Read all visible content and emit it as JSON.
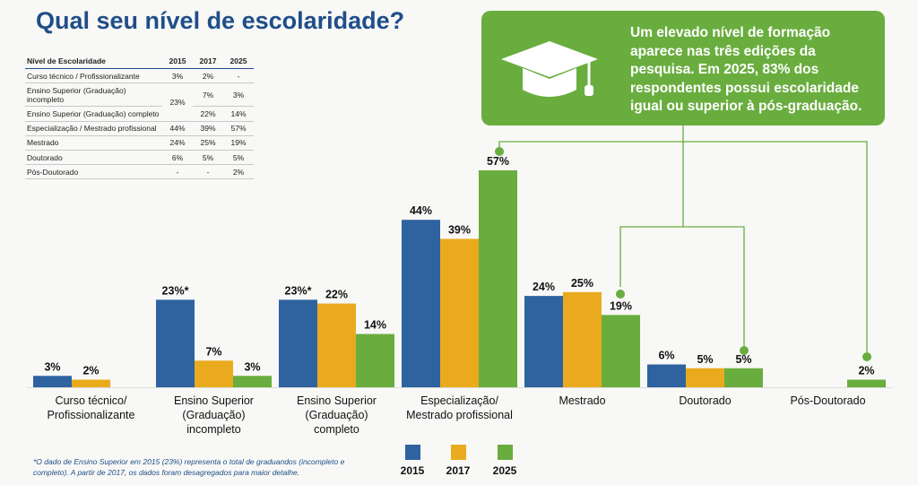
{
  "title": "Qual seu nível de escolaridade?",
  "table": {
    "headers": [
      "Nível de Escolaridade",
      "2015",
      "2017",
      "2025"
    ],
    "rows": [
      [
        "Curso técnico / Profissionalizante",
        "3%",
        "2%",
        "-"
      ],
      [
        "Ensino Superior (Graduação) incompleto",
        "23%",
        "7%",
        "3%"
      ],
      [
        "Ensino Superior (Graduação) completo",
        "",
        "22%",
        "14%"
      ],
      [
        "Especialização / Mestrado profissional",
        "44%",
        "39%",
        "57%"
      ],
      [
        "Mestrado",
        "24%",
        "25%",
        "19%"
      ],
      [
        "Doutorado",
        "6%",
        "5%",
        "5%"
      ],
      [
        "Pós-Doutorado",
        "-",
        "-",
        "2%"
      ]
    ]
  },
  "callout": {
    "text": "Um elevado nível de formação aparece nas três edições da pesquisa. Em 2025, 83% dos respondentes possui escolaridade igual ou superior à pós-graduação.",
    "icon": "graduation-cap-icon"
  },
  "footnote": "*O dado de Ensino Superior em 2015 (23%) representa o total de graduandos (incompleto e completo). A partir de 2017, os dados foram desagregados para maior detalhe.",
  "colors": {
    "2015": "#2e63a0",
    "2017": "#e9ab1d",
    "2025": "#6aad3f",
    "title": "#1f4e89"
  },
  "chart_data": {
    "type": "bar",
    "categories": [
      "Curso técnico/ Profissionalizante",
      "Ensino Superior (Graduação) incompleto",
      "Ensino Superior (Graduação) completo",
      "Especialização/ Mestrado profissional",
      "Mestrado",
      "Doutorado",
      "Pós-Doutorado"
    ],
    "category_lines": [
      [
        "Curso técnico/",
        "Profissionalizante"
      ],
      [
        "Ensino Superior",
        "(Graduação)",
        "incompleto"
      ],
      [
        "Ensino Superior",
        "(Graduação)",
        "completo"
      ],
      [
        "Especialização/",
        "Mestrado profissional"
      ],
      [
        "Mestrado"
      ],
      [
        "Doutorado"
      ],
      [
        "Pós-Doutorado"
      ]
    ],
    "series": [
      {
        "name": "2015",
        "values": [
          3,
          23,
          23,
          44,
          24,
          6,
          null
        ],
        "labels": [
          "3%",
          "23%*",
          "23%*",
          "44%",
          "24%",
          "6%",
          ""
        ]
      },
      {
        "name": "2017",
        "values": [
          2,
          7,
          22,
          39,
          25,
          5,
          null
        ],
        "labels": [
          "2%",
          "7%",
          "22%",
          "39%",
          "25%",
          "5%",
          ""
        ]
      },
      {
        "name": "2025",
        "values": [
          null,
          3,
          14,
          57,
          19,
          5,
          2
        ],
        "labels": [
          "",
          "3%",
          "14%",
          "57%",
          "19%",
          "5%",
          "2%"
        ]
      }
    ],
    "ylim": [
      0,
      57
    ],
    "grid": false,
    "legend": "bottom"
  }
}
